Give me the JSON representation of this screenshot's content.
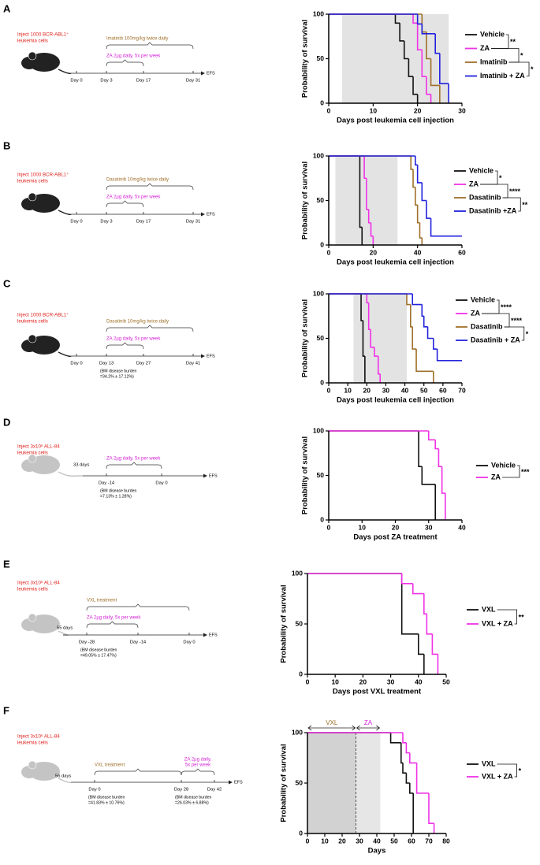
{
  "panels": [
    "A",
    "B",
    "C",
    "D",
    "E",
    "F"
  ],
  "schematics": [
    {
      "inject": [
        "Inject 1000 BCR-ABL1⁺",
        "leukemia cells"
      ],
      "treatments": [
        {
          "label": [
            "Imatinib 100mg/kg twice daily"
          ],
          "color": "#a0702a"
        },
        {
          "label": [
            "ZA 2µg daily, 5x per week"
          ],
          "color": "#d61fd6"
        }
      ],
      "days": [
        "Day 0",
        "Day 3",
        "Day 17",
        "Day 31"
      ],
      "end": "EFS",
      "burdens": [],
      "interval": null
    },
    {
      "inject": [
        "Inject 1000 BCR-ABL1⁺",
        "leukemia cells"
      ],
      "treatments": [
        {
          "label": [
            "Dasatinib 10mg/kg twice daily"
          ],
          "color": "#a0702a"
        },
        {
          "label": [
            "ZA 2µg daily, 5x per week"
          ],
          "color": "#d61fd6"
        }
      ],
      "days": [
        "Day 0",
        "Day 3",
        "Day 17",
        "Day 31"
      ],
      "end": "EFS",
      "burdens": [],
      "interval": null
    },
    {
      "inject": [
        "Inject 1000 BCR-ABL1⁺",
        "leukemia cells"
      ],
      "treatments": [
        {
          "label": [
            "Dasatinib 10mg/kg twice daily"
          ],
          "color": "#a0702a"
        },
        {
          "label": [
            "ZA 2µg daily, 5x per week"
          ],
          "color": "#d61fd6"
        }
      ],
      "days": [
        "Day 0",
        "Day 13",
        "Day 27",
        "Day 41"
      ],
      "end": "EFS",
      "burdens": [
        [
          "(BM disease burden",
          "=34.2% ± 17.12%)"
        ]
      ],
      "interval": null
    },
    {
      "inject": [
        "Inject 3x10⁶ ALL-84",
        "leukemia cells"
      ],
      "treatments": [
        {
          "label": [
            "ZA 2µg daily, 5x per week"
          ],
          "color": "#d61fd6"
        }
      ],
      "days": [
        "Day -14",
        "Day 0"
      ],
      "end": "EFS",
      "burdens": [
        [
          "(BM disease burden",
          "=7.13% ± 1.28%)"
        ]
      ],
      "interval": "33 days"
    },
    {
      "inject": [
        "Inject 3x10⁶ ALL-84",
        "leukemia cells"
      ],
      "treatments": [
        {
          "label": [
            "VXL treatment"
          ],
          "color": "#a0702a"
        },
        {
          "label": [
            "ZA 2µg daily, 5x per week"
          ],
          "color": "#d61fd6"
        }
      ],
      "days": [
        "Day -28",
        "Day -14",
        "Day 0"
      ],
      "end": "EFS",
      "burdens": [
        [
          "(BM disease burden",
          "=49.05% ± 17.47%)"
        ]
      ],
      "interval": "55 days"
    },
    {
      "inject": [
        "Inject 3x10⁶ ALL-84",
        "leukemia cells"
      ],
      "treatments": [
        {
          "label": [
            "VXL treatment"
          ],
          "color": "#a0702a"
        },
        {
          "label": [
            "ZA 2µg daily,",
            "5x per week"
          ],
          "color": "#d61fd6"
        }
      ],
      "days": [
        "Day 0",
        "Day 28",
        "Day 42"
      ],
      "end": "EFS",
      "burdens": [
        [
          "(BM disease burden",
          "=41.83% ± 10.76%)"
        ],
        [
          "(BM disease burden",
          "=26.03% ± 6.88%)"
        ]
      ],
      "interval": "56 days"
    }
  ],
  "chart_data": [
    {
      "type": "step",
      "x_label": "Days post leukemia cell injection",
      "y_label": "Probability of survival",
      "xlim": [
        0,
        30
      ],
      "ylim": [
        0,
        100
      ],
      "xticks": [
        0,
        10,
        20,
        30
      ],
      "yticks": [
        0,
        50,
        100
      ],
      "shade": [
        3,
        27
      ],
      "series": [
        {
          "name": "Vehicle",
          "color": "#111111",
          "x": [
            0,
            15,
            16,
            17,
            18,
            19,
            20
          ],
          "values": [
            100,
            90,
            70,
            50,
            30,
            10,
            0
          ]
        },
        {
          "name": "ZA",
          "color": "#f032e6",
          "x": [
            0,
            19,
            20,
            21,
            22,
            23
          ],
          "values": [
            100,
            90,
            60,
            30,
            10,
            0
          ]
        },
        {
          "name": "Imatinib",
          "color": "#a0702a",
          "x": [
            0,
            21,
            22,
            23,
            25
          ],
          "values": [
            100,
            80,
            50,
            20,
            0
          ]
        },
        {
          "name": "Imatinib + ZA",
          "color": "#2222dd",
          "x": [
            0,
            20,
            21,
            24,
            25,
            27
          ],
          "values": [
            100,
            89,
            78,
            56,
            22,
            0
          ]
        }
      ],
      "significance": [
        "**",
        "*",
        "*"
      ]
    },
    {
      "type": "step",
      "x_label": "Days post leukemia cell injection",
      "y_label": "Probability of survival",
      "xlim": [
        0,
        60
      ],
      "ylim": [
        0,
        100
      ],
      "xticks": [
        0,
        20,
        40,
        60
      ],
      "yticks": [
        0,
        50,
        100
      ],
      "shade": [
        3,
        31
      ],
      "series": [
        {
          "name": "Vehicle",
          "color": "#111111",
          "x": [
            0,
            14,
            15
          ],
          "values": [
            100,
            20,
            0
          ]
        },
        {
          "name": "ZA",
          "color": "#f032e6",
          "x": [
            0,
            16,
            17,
            18,
            19,
            20
          ],
          "values": [
            100,
            75,
            40,
            25,
            10,
            0
          ]
        },
        {
          "name": "Dasatinib",
          "color": "#a0702a",
          "x": [
            0,
            37,
            38,
            39,
            40,
            41,
            42
          ],
          "values": [
            100,
            85,
            65,
            45,
            25,
            8,
            0
          ]
        },
        {
          "name": "Dasatinib +ZA",
          "color": "#2222dd",
          "x": [
            0,
            39,
            40,
            42,
            44,
            46,
            60
          ],
          "values": [
            100,
            90,
            70,
            50,
            30,
            10,
            10
          ]
        }
      ],
      "significance": [
        "*",
        "****",
        "**"
      ]
    },
    {
      "type": "step",
      "x_label": "Days post leukemia cell injection",
      "y_label": "Probability of survival",
      "xlim": [
        0,
        70
      ],
      "ylim": [
        0,
        100
      ],
      "xticks": [
        0,
        10,
        20,
        30,
        40,
        50,
        60,
        70
      ],
      "yticks": [
        0,
        50,
        100
      ],
      "shade": [
        13,
        41
      ],
      "series": [
        {
          "name": "Vehicle",
          "color": "#111111",
          "x": [
            0,
            17,
            18,
            19
          ],
          "values": [
            100,
            70,
            30,
            0
          ]
        },
        {
          "name": "ZA",
          "color": "#f032e6",
          "x": [
            0,
            20,
            21,
            22,
            24,
            26,
            27
          ],
          "values": [
            100,
            90,
            60,
            40,
            30,
            10,
            0
          ]
        },
        {
          "name": "Dasatinib",
          "color": "#a0702a",
          "x": [
            0,
            41,
            43,
            44,
            46,
            55
          ],
          "values": [
            100,
            88,
            63,
            38,
            13,
            0
          ]
        },
        {
          "name": "Dasatinib + ZA",
          "color": "#2222dd",
          "x": [
            0,
            44,
            49,
            50,
            52,
            55,
            57,
            70
          ],
          "values": [
            100,
            88,
            75,
            63,
            50,
            38,
            25,
            25
          ]
        }
      ],
      "significance": [
        "****",
        "****",
        "*"
      ]
    },
    {
      "type": "step",
      "x_label": "Days post ZA treatment",
      "y_label": "Probability of survival",
      "xlim": [
        0,
        40
      ],
      "ylim": [
        0,
        100
      ],
      "xticks": [
        0,
        10,
        20,
        30,
        40
      ],
      "yticks": [
        0,
        50,
        100
      ],
      "series": [
        {
          "name": "Vehicle",
          "color": "#111111",
          "x": [
            0,
            27,
            28,
            32
          ],
          "values": [
            100,
            60,
            40,
            0
          ]
        },
        {
          "name": "ZA",
          "color": "#f032e6",
          "x": [
            0,
            30,
            32,
            33,
            34,
            35
          ],
          "values": [
            100,
            90,
            80,
            60,
            30,
            0
          ]
        }
      ],
      "significance": [
        "***"
      ]
    },
    {
      "type": "step",
      "x_label": "Days post VXL treatment",
      "y_label": "Probability of survival",
      "xlim": [
        0,
        50
      ],
      "ylim": [
        0,
        100
      ],
      "xticks": [
        0,
        10,
        20,
        30,
        40,
        50
      ],
      "yticks": [
        0,
        50,
        100
      ],
      "series": [
        {
          "name": "VXL",
          "color": "#111111",
          "x": [
            0,
            34,
            40,
            42
          ],
          "values": [
            100,
            40,
            20,
            0
          ]
        },
        {
          "name": "VXL + ZA",
          "color": "#f032e6",
          "x": [
            0,
            34,
            38,
            42,
            43,
            45,
            47
          ],
          "values": [
            100,
            90,
            80,
            60,
            40,
            20,
            0
          ]
        }
      ],
      "significance": [
        "**"
      ]
    },
    {
      "type": "step",
      "x_label": "Days",
      "y_label": "Probability of survival",
      "xlim": [
        0,
        80
      ],
      "ylim": [
        0,
        100
      ],
      "xticks": [
        0,
        10,
        20,
        30,
        40,
        50,
        60,
        70,
        80
      ],
      "yticks": [
        0,
        50,
        100
      ],
      "phases": [
        {
          "label": "VXL",
          "range": [
            0,
            28
          ],
          "color": "#d2d2d2"
        },
        {
          "label": "ZA",
          "range": [
            28,
            42
          ],
          "color": "#e6e6e6"
        }
      ],
      "series": [
        {
          "name": "VXL",
          "color": "#111111",
          "x": [
            0,
            48,
            54,
            55,
            57,
            59,
            61
          ],
          "values": [
            100,
            90,
            70,
            60,
            50,
            40,
            0
          ]
        },
        {
          "name": "VXL + ZA",
          "color": "#f032e6",
          "x": [
            0,
            55,
            57,
            59,
            63,
            70,
            73
          ],
          "values": [
            100,
            90,
            80,
            70,
            40,
            10,
            0
          ]
        }
      ],
      "significance": [
        "*"
      ]
    }
  ]
}
